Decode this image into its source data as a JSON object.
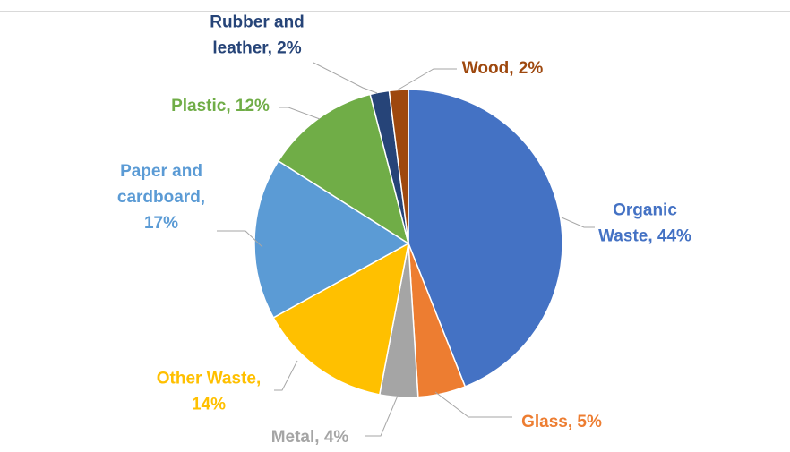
{
  "chart_data": {
    "type": "pie",
    "title": "",
    "slices": [
      {
        "name": "Organic Waste",
        "value": 44,
        "label_lines": [
          "Organic",
          "Waste, 44%"
        ],
        "color": "#4472C4"
      },
      {
        "name": "Glass",
        "value": 5,
        "label_lines": [
          "Glass, 5%"
        ],
        "color": "#ED7D31"
      },
      {
        "name": "Metal",
        "value": 4,
        "label_lines": [
          "Metal, 4%"
        ],
        "color": "#A5A5A5"
      },
      {
        "name": "Other Waste",
        "value": 14,
        "label_lines": [
          "Other Waste,",
          "14%"
        ],
        "color": "#FFC000"
      },
      {
        "name": "Paper and cardboard",
        "value": 17,
        "label_lines": [
          "Paper and",
          "cardboard,",
          "17%"
        ],
        "color": "#5B9BD5"
      },
      {
        "name": "Plastic",
        "value": 12,
        "label_lines": [
          "Plastic, 12%"
        ],
        "color": "#70AD47"
      },
      {
        "name": "Rubber and leather",
        "value": 2,
        "label_lines": [
          "Rubber and",
          "leather, 2%"
        ],
        "color": "#264478"
      },
      {
        "name": "Wood",
        "value": 2,
        "label_lines": [
          "Wood, 2%"
        ],
        "color": "#9E480E"
      }
    ],
    "label_colors": {
      "Organic Waste": "#4472C4",
      "Glass": "#ED7D31",
      "Metal": "#A5A5A5",
      "Other Waste": "#FFC000",
      "Paper and cardboard": "#5B9BD5",
      "Plastic": "#70AD47",
      "Rubber and leather": "#264478",
      "Wood": "#9E480E"
    },
    "legend": "none",
    "data_labels": "outside-with-leader-lines"
  }
}
